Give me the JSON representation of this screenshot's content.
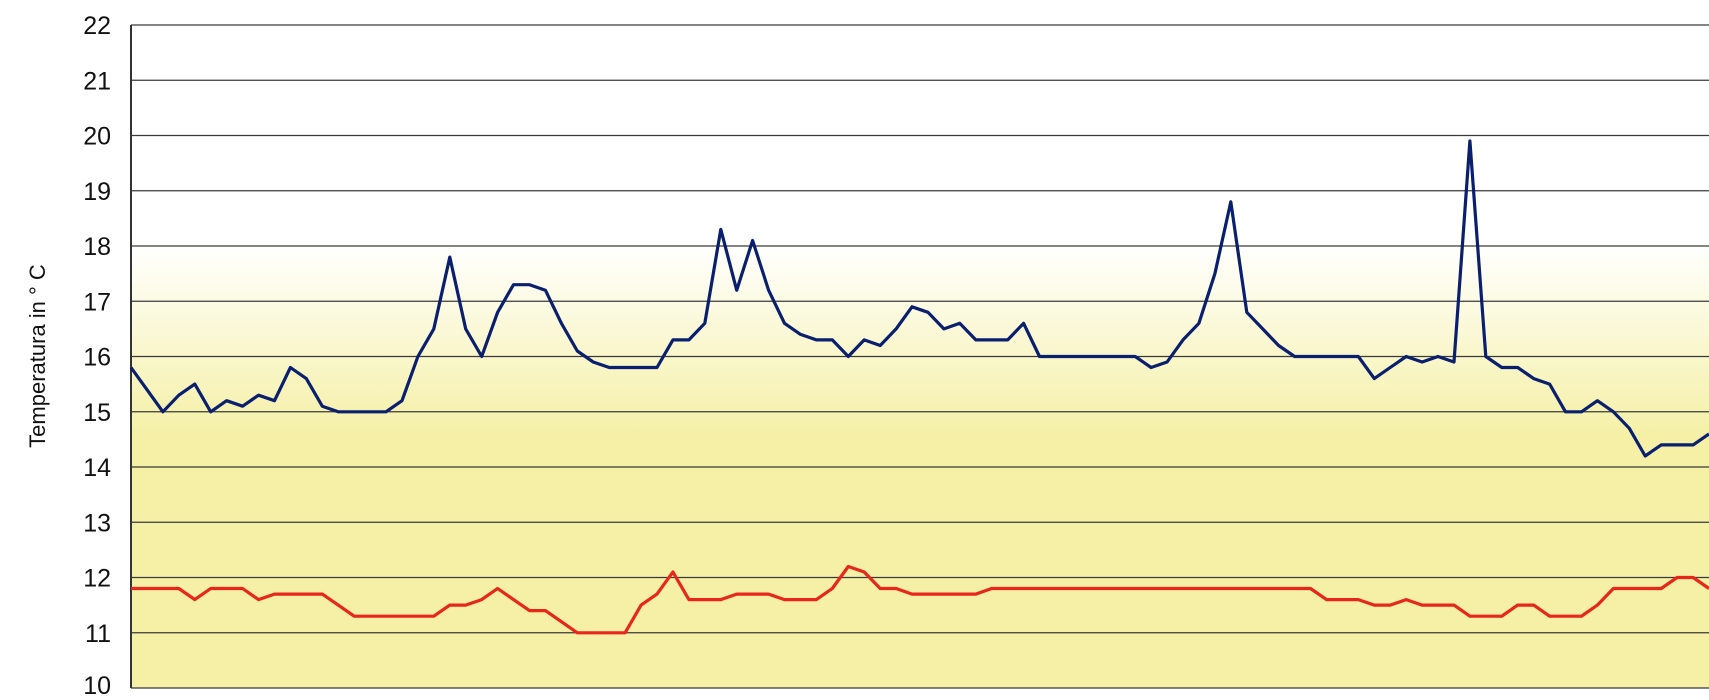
{
  "chart_data": {
    "type": "line",
    "title": "",
    "ylabel": "Temperatura in ° C",
    "xlabel": "",
    "ylim": [
      10,
      22
    ],
    "yticks": [
      10,
      11,
      12,
      13,
      14,
      15,
      16,
      17,
      18,
      19,
      20,
      21,
      22
    ],
    "grid": true,
    "background_gradient": [
      "#ffffff",
      "#f5f0a6"
    ],
    "n_points": 100,
    "series": [
      {
        "color": "#0a1f6e",
        "values": [
          15.8,
          15.4,
          15.0,
          15.3,
          15.5,
          15.0,
          15.2,
          15.1,
          15.3,
          15.2,
          15.8,
          15.6,
          15.1,
          15.0,
          15.0,
          15.0,
          15.0,
          15.2,
          16.0,
          16.5,
          17.8,
          16.5,
          16.0,
          16.8,
          17.3,
          17.3,
          17.2,
          16.6,
          16.1,
          15.9,
          15.8,
          15.8,
          15.8,
          15.8,
          16.3,
          16.3,
          16.6,
          18.3,
          17.2,
          18.1,
          17.2,
          16.6,
          16.4,
          16.3,
          16.3,
          16.0,
          16.3,
          16.2,
          16.5,
          16.9,
          16.8,
          16.5,
          16.6,
          16.3,
          16.3,
          16.3,
          16.6,
          16.0,
          16.0,
          16.0,
          16.0,
          16.0,
          16.0,
          16.0,
          15.8,
          15.9,
          16.3,
          16.6,
          17.5,
          18.8,
          16.8,
          16.5,
          16.2,
          16.0,
          16.0,
          16.0,
          16.0,
          16.0,
          15.6,
          15.8,
          16.0,
          15.9,
          16.0,
          15.9,
          19.9,
          16.0,
          15.8,
          15.8,
          15.6,
          15.5,
          15.0,
          15.0,
          15.2,
          15.0,
          14.7,
          14.2,
          14.4,
          14.4,
          14.4,
          14.6
        ]
      },
      {
        "color": "#e8261c",
        "values": [
          11.8,
          11.8,
          11.8,
          11.8,
          11.6,
          11.8,
          11.8,
          11.8,
          11.6,
          11.7,
          11.7,
          11.7,
          11.7,
          11.5,
          11.3,
          11.3,
          11.3,
          11.3,
          11.3,
          11.3,
          11.5,
          11.5,
          11.6,
          11.8,
          11.6,
          11.4,
          11.4,
          11.2,
          11.0,
          11.0,
          11.0,
          11.0,
          11.5,
          11.7,
          12.1,
          11.6,
          11.6,
          11.6,
          11.7,
          11.7,
          11.7,
          11.6,
          11.6,
          11.6,
          11.8,
          12.2,
          12.1,
          11.8,
          11.8,
          11.7,
          11.7,
          11.7,
          11.7,
          11.7,
          11.8,
          11.8,
          11.8,
          11.8,
          11.8,
          11.8,
          11.8,
          11.8,
          11.8,
          11.8,
          11.8,
          11.8,
          11.8,
          11.8,
          11.8,
          11.8,
          11.8,
          11.8,
          11.8,
          11.8,
          11.8,
          11.6,
          11.6,
          11.6,
          11.5,
          11.5,
          11.6,
          11.5,
          11.5,
          11.5,
          11.3,
          11.3,
          11.3,
          11.5,
          11.5,
          11.3,
          11.3,
          11.3,
          11.5,
          11.8,
          11.8,
          11.8,
          11.8,
          12.0,
          12.0,
          11.8
        ]
      }
    ]
  }
}
